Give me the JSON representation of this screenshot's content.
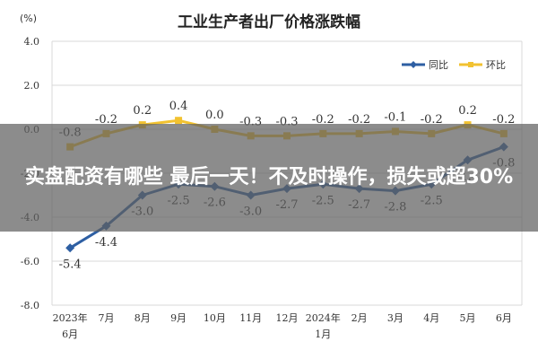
{
  "chart_data": {
    "type": "line",
    "title": "工业生产者出厂价格涨跌幅",
    "ylabel": "(%)",
    "ylim": [
      -8.0,
      4.0
    ],
    "yticks": [
      "4.0",
      "2.0",
      "0.0",
      "-2.0",
      "-4.0",
      "-6.0",
      "-8.0"
    ],
    "categories": [
      "2023年6月",
      "7月",
      "8月",
      "9月",
      "10月",
      "11月",
      "12月",
      "2024年1月",
      "2月",
      "3月",
      "4月",
      "5月",
      "6月"
    ],
    "grid": true,
    "legend": "top-right",
    "series": [
      {
        "name": "同比",
        "color": "#2e5fa3",
        "values": [
          -5.4,
          -4.4,
          -3.0,
          -2.5,
          -2.6,
          -3.0,
          -2.7,
          -2.5,
          -2.7,
          -2.8,
          -2.5,
          -1.4,
          -0.8
        ],
        "labels": [
          "-5.4",
          "-4.4",
          "-3.0",
          "-2.5",
          "-2.6",
          "-3.0",
          "-2.7",
          "-2.5",
          "-2.7",
          "-2.8",
          "-2.5",
          "-1.4",
          "-0.8"
        ]
      },
      {
        "name": "环比",
        "color": "#f2c230",
        "values": [
          -0.8,
          -0.2,
          0.2,
          0.4,
          0.0,
          -0.3,
          -0.3,
          -0.2,
          -0.2,
          -0.1,
          -0.2,
          0.2,
          -0.2
        ],
        "labels": [
          "-0.8",
          "-0.2",
          "0.2",
          "0.4",
          "0.0",
          "-0.3",
          "-0.3",
          "-0.2",
          "-0.2",
          "-0.1",
          "-0.2",
          "0.2",
          "-0.2"
        ]
      }
    ]
  },
  "overlay": {
    "headline": "实盘配资有哪些 最后一天！不及时操作，损失或超30%"
  }
}
